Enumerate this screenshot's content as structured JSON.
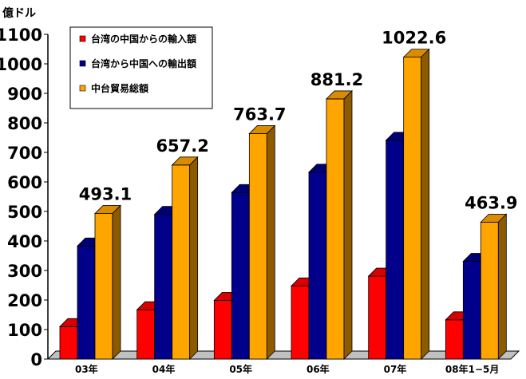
{
  "chart_data": {
    "type": "bar",
    "bar_style": "3d",
    "unit_label": "億ドル",
    "categories": [
      "03年",
      "04年",
      "05年",
      "06年",
      "07年",
      "08年1−5月"
    ],
    "series": [
      {
        "name": "台湾の中国からの輸入額",
        "color": "#ff0000",
        "values": [
          110,
          167,
          199,
          248,
          281,
          133
        ]
      },
      {
        "name": "台湾から中国への輸出額",
        "color": "#00008b",
        "values": [
          383,
          490,
          564,
          633,
          741,
          331
        ]
      },
      {
        "name": "中台貿易総額",
        "color": "#ffa500",
        "values": [
          493.1,
          657.2,
          763.7,
          881.2,
          1022.6,
          463.9
        ]
      }
    ],
    "data_labels": [
      "493.1",
      "657.2",
      "763.7",
      "881.2",
      "1022.6",
      "463.9"
    ],
    "y_ticks": [
      "0",
      "100",
      "200",
      "300",
      "400",
      "500",
      "600",
      "700",
      "800",
      "900",
      "1000",
      "1100"
    ],
    "ylim": [
      0,
      1100
    ],
    "grid": false,
    "legend_position": "top-left"
  },
  "colors": {
    "floor": "#c0c0c0",
    "axis": "#000000",
    "frame": "#000000"
  }
}
